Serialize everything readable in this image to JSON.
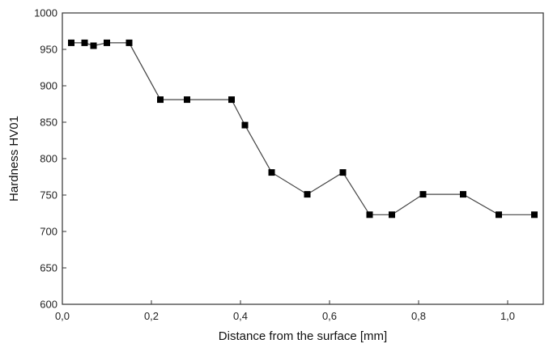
{
  "chart_data": {
    "type": "line",
    "title": "",
    "xlabel": "Distance from the surface [mm]",
    "ylabel": "Hardness HV01",
    "xlim": [
      0.0,
      1.08
    ],
    "ylim": [
      600,
      1000
    ],
    "grid": false,
    "legend": "none",
    "x_ticks": [
      {
        "value": 0.0,
        "label": "0,0"
      },
      {
        "value": 0.2,
        "label": "0,2"
      },
      {
        "value": 0.4,
        "label": "0,4"
      },
      {
        "value": 0.6,
        "label": "0,6"
      },
      {
        "value": 0.8,
        "label": "0,8"
      },
      {
        "value": 1.0,
        "label": "1,0"
      }
    ],
    "y_ticks": [
      {
        "value": 600,
        "label": "600"
      },
      {
        "value": 650,
        "label": "650"
      },
      {
        "value": 700,
        "label": "700"
      },
      {
        "value": 750,
        "label": "750"
      },
      {
        "value": 800,
        "label": "800"
      },
      {
        "value": 850,
        "label": "850"
      },
      {
        "value": 900,
        "label": "900"
      },
      {
        "value": 950,
        "label": "950"
      },
      {
        "value": 1000,
        "label": "1000"
      }
    ],
    "series": [
      {
        "marker": "square",
        "color": "#000000",
        "points": [
          {
            "x": 0.02,
            "y": 959
          },
          {
            "x": 0.05,
            "y": 959
          },
          {
            "x": 0.07,
            "y": 955
          },
          {
            "x": 0.1,
            "y": 959
          },
          {
            "x": 0.15,
            "y": 959
          },
          {
            "x": 0.22,
            "y": 881
          },
          {
            "x": 0.28,
            "y": 881
          },
          {
            "x": 0.38,
            "y": 881
          },
          {
            "x": 0.41,
            "y": 846
          },
          {
            "x": 0.47,
            "y": 781
          },
          {
            "x": 0.55,
            "y": 751
          },
          {
            "x": 0.63,
            "y": 781
          },
          {
            "x": 0.69,
            "y": 723
          },
          {
            "x": 0.74,
            "y": 723
          },
          {
            "x": 0.81,
            "y": 751
          },
          {
            "x": 0.9,
            "y": 751
          },
          {
            "x": 0.98,
            "y": 723
          },
          {
            "x": 1.06,
            "y": 723
          }
        ]
      }
    ],
    "colors": {
      "axis": "#333333",
      "line": "#444444",
      "marker": "#000000"
    }
  }
}
